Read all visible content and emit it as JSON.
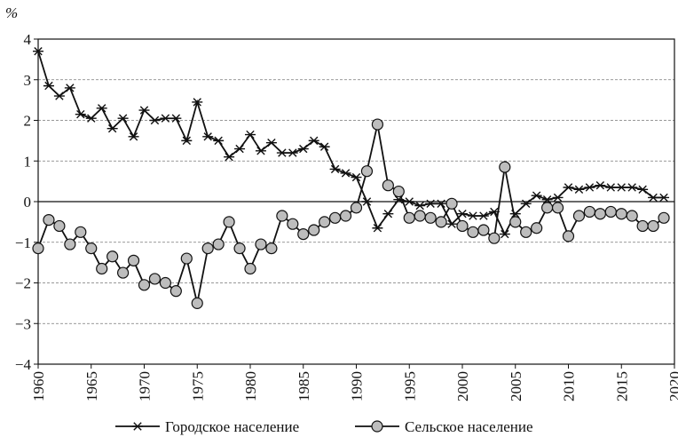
{
  "chart_data": {
    "type": "line",
    "y_label": "%",
    "x": [
      1960,
      1961,
      1962,
      1963,
      1964,
      1965,
      1966,
      1967,
      1968,
      1969,
      1970,
      1971,
      1972,
      1973,
      1974,
      1975,
      1976,
      1977,
      1978,
      1979,
      1980,
      1981,
      1982,
      1983,
      1984,
      1985,
      1986,
      1987,
      1988,
      1989,
      1990,
      1991,
      1992,
      1993,
      1994,
      1995,
      1996,
      1997,
      1998,
      1999,
      2000,
      2001,
      2002,
      2003,
      2004,
      2005,
      2006,
      2007,
      2008,
      2009,
      2010,
      2011,
      2012,
      2013,
      2014,
      2015,
      2016,
      2017,
      2018,
      2019
    ],
    "series": [
      {
        "name": "Городское население",
        "color": "#111111",
        "marker": "asterisk",
        "values": [
          3.7,
          2.85,
          2.6,
          2.8,
          2.15,
          2.05,
          2.3,
          1.8,
          2.05,
          1.6,
          2.25,
          2.0,
          2.05,
          2.05,
          1.5,
          2.45,
          1.6,
          1.5,
          1.1,
          1.3,
          1.65,
          1.25,
          1.45,
          1.2,
          1.2,
          1.3,
          1.5,
          1.35,
          0.8,
          0.7,
          0.6,
          0.0,
          -0.65,
          -0.3,
          0.05,
          0.0,
          -0.1,
          -0.05,
          -0.05,
          -0.55,
          -0.3,
          -0.35,
          -0.35,
          -0.25,
          -0.8,
          -0.3,
          -0.05,
          0.15,
          0.05,
          0.1,
          0.35,
          0.3,
          0.35,
          0.4,
          0.35,
          0.35,
          0.35,
          0.3,
          0.1,
          0.1
        ]
      },
      {
        "name": "Сельское население",
        "color": "#111111",
        "marker": "circle",
        "marker_fill": "#bdbdbd",
        "values": [
          -1.15,
          -0.45,
          -0.6,
          -1.05,
          -0.75,
          -1.15,
          -1.65,
          -1.35,
          -1.75,
          -1.45,
          -2.05,
          -1.9,
          -2.0,
          -2.2,
          -1.4,
          -2.5,
          -1.15,
          -1.05,
          -0.5,
          -1.15,
          -1.65,
          -1.05,
          -1.15,
          -0.35,
          -0.55,
          -0.8,
          -0.7,
          -0.5,
          -0.4,
          -0.35,
          -0.15,
          0.75,
          1.9,
          0.4,
          0.25,
          -0.4,
          -0.35,
          -0.4,
          -0.5,
          -0.05,
          -0.6,
          -0.75,
          -0.7,
          -0.9,
          0.85,
          -0.5,
          -0.75,
          -0.65,
          -0.15,
          -0.15,
          -0.85,
          -0.35,
          -0.25,
          -0.3,
          -0.25,
          -0.3,
          -0.35,
          -0.6,
          -0.6,
          -0.4
        ]
      }
    ],
    "xlim": [
      1960,
      2020
    ],
    "xticks": [
      1960,
      1965,
      1970,
      1975,
      1980,
      1985,
      1990,
      1995,
      2000,
      2005,
      2010,
      2015,
      2020
    ],
    "ylim": [
      -4,
      4
    ],
    "yticks": [
      {
        "value": -4,
        "label": "−4"
      },
      {
        "value": -3,
        "label": "−3"
      },
      {
        "value": -2,
        "label": "−2"
      },
      {
        "value": -1,
        "label": "−1"
      },
      0,
      1,
      2,
      3,
      4
    ],
    "grid": true,
    "legend": "bottom"
  }
}
